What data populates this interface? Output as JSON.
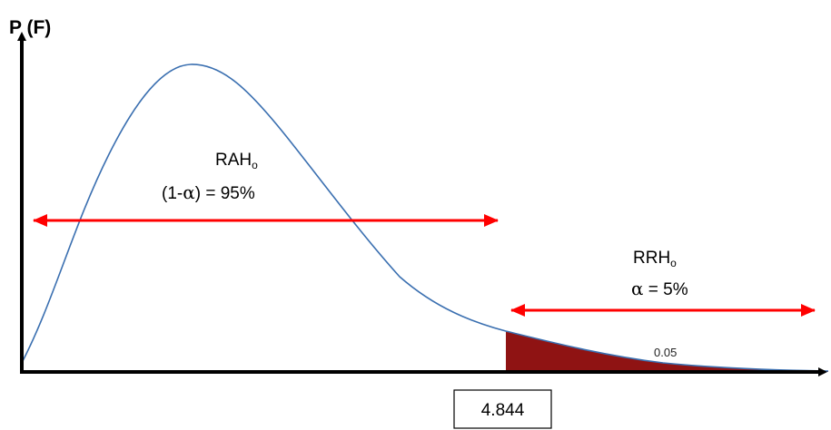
{
  "y_axis_label": "P (F)",
  "acceptance": {
    "label_main": "RAH",
    "label_sub": "o",
    "open_paren": "(1-",
    "alpha_symbol": "α",
    "equation": ")  = 95%"
  },
  "rejection": {
    "label_main": "RRH",
    "label_sub": "o",
    "alpha_symbol": "α",
    "equation": "  = 5%"
  },
  "tail_area_label": "0.05",
  "critical_value": "4.844",
  "colors": {
    "curve": "#3a6fb0",
    "arrows": "#ff0000",
    "tail_fill": "#8f1313",
    "axes": "#000000"
  }
}
